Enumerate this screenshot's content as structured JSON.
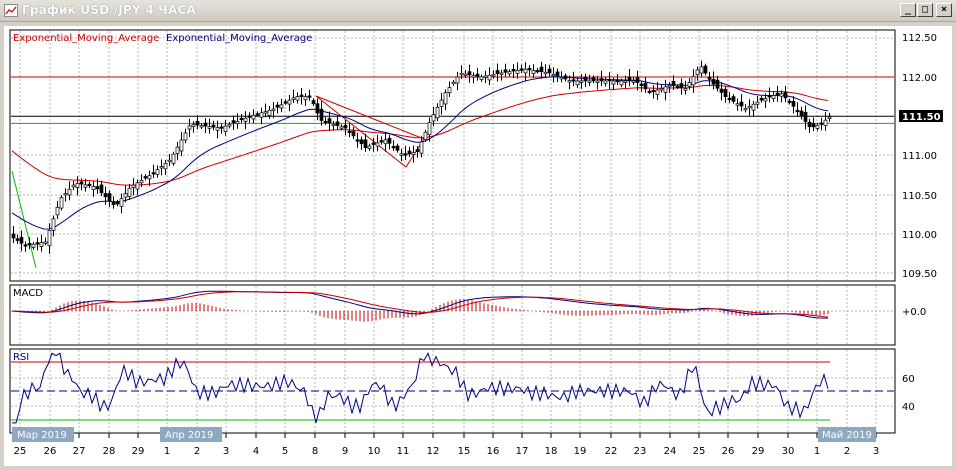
{
  "window": {
    "title": "График USD /JPY  4 ЧАСА",
    "minimize_glyph": "_",
    "maximize_glyph": "□",
    "close_glyph": "×"
  },
  "colors": {
    "red": "#cc0000",
    "blue": "#00007f",
    "green": "#00bb00",
    "grid": "#b5b5b5",
    "magenta": "#cc00cc",
    "price_badge_bg": "#000000",
    "date_badge_bg": "#8ea8c0"
  },
  "main_panel": {
    "legend_red": "Exponential_Moving_Average",
    "legend_blue": "Exponential_Moving_Average",
    "y_ticks": [
      "112.50",
      "112.00",
      "111.00",
      "110.50",
      "110.00",
      "109.50"
    ],
    "current_price": "111.50"
  },
  "macd_panel": {
    "label": "MACD",
    "y_tick": "+0.0"
  },
  "rsi_panel": {
    "label": "RSI",
    "y_ticks": [
      "60",
      "40"
    ]
  },
  "x_axis": {
    "labels": [
      "25",
      "26",
      "27",
      "28",
      "29",
      "1",
      "2",
      "3",
      "4",
      "5",
      "8",
      "9",
      "10",
      "11",
      "12",
      "15",
      "16",
      "17",
      "18",
      "19",
      "22",
      "23",
      "24",
      "25",
      "26",
      "29",
      "30",
      "1",
      "2",
      "3"
    ],
    "month_badges": [
      "Мар 2019",
      "Апр 2019",
      "Май 2019"
    ]
  }
}
